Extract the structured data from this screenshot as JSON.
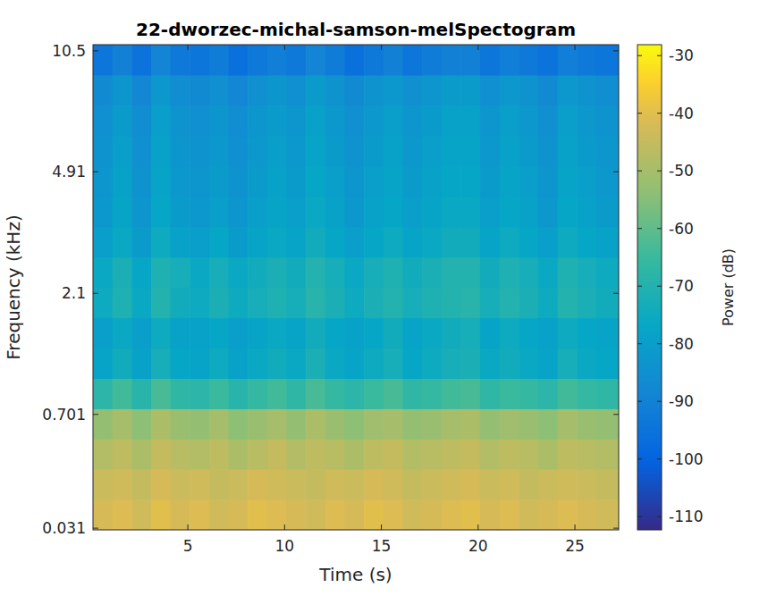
{
  "chart_data": {
    "type": "heatmap",
    "title": "22-dworzec-michal-samson-melSpectogram",
    "x_label": "Time (s)",
    "y_label": "Frequency (kHz)",
    "xlim": [
      0.1,
      27.26
    ],
    "xticks": [
      5,
      10,
      15,
      20,
      25
    ],
    "ylim": [
      0.024,
      10.9
    ],
    "yticks": [
      0.031,
      0.701,
      2.1,
      4.91,
      10.5
    ],
    "clim": [
      -112.3,
      -28.1
    ],
    "cticks": [
      -110,
      -100,
      -90,
      -80,
      -70,
      -60,
      -50,
      -40,
      -30
    ],
    "clabel": "Power (dB)",
    "x": [
      0.6,
      1.6,
      2.6,
      3.6,
      4.6,
      5.6,
      6.6,
      7.6,
      8.6,
      9.6,
      10.6,
      11.6,
      12.6,
      13.6,
      14.6,
      15.6,
      16.6,
      17.6,
      18.6,
      19.6,
      20.6,
      21.6,
      22.6,
      23.6,
      24.6,
      25.6,
      26.6
    ],
    "y": [
      0.089,
      0.238,
      0.416,
      0.627,
      0.879,
      1.178,
      1.532,
      1.957,
      2.458,
      3.059,
      3.768,
      4.613,
      5.622,
      6.815,
      8.232,
      9.933
    ],
    "cells": [
      [
        -42,
        -41,
        -43,
        -40,
        -42,
        -41,
        -43,
        -42,
        -40,
        -41,
        -42,
        -43,
        -41,
        -42,
        -40,
        -41,
        -43,
        -42,
        -41,
        -40,
        -42,
        -41,
        -43,
        -42,
        -41,
        -42,
        -43
      ],
      [
        -44,
        -43,
        -45,
        -42,
        -44,
        -43,
        -45,
        -44,
        -42,
        -43,
        -44,
        -45,
        -43,
        -44,
        -42,
        -43,
        -45,
        -44,
        -43,
        -42,
        -44,
        -43,
        -45,
        -44,
        -43,
        -44,
        -45
      ],
      [
        -48,
        -46,
        -49,
        -45,
        -47,
        -48,
        -46,
        -49,
        -47,
        -45,
        -48,
        -46,
        -47,
        -49,
        -46,
        -45,
        -48,
        -47,
        -46,
        -45,
        -48,
        -46,
        -47,
        -49,
        -46,
        -47,
        -48
      ],
      [
        -53,
        -50,
        -54,
        -49,
        -52,
        -53,
        -50,
        -54,
        -52,
        -50,
        -53,
        -49,
        -52,
        -54,
        -51,
        -50,
        -53,
        -52,
        -50,
        -49,
        -53,
        -51,
        -52,
        -54,
        -50,
        -52,
        -53
      ],
      [
        -68,
        -64,
        -69,
        -63,
        -67,
        -68,
        -65,
        -69,
        -66,
        -64,
        -67,
        -63,
        -66,
        -68,
        -65,
        -63,
        -67,
        -66,
        -64,
        -63,
        -67,
        -65,
        -66,
        -68,
        -64,
        -66,
        -67
      ],
      [
        -78,
        -74,
        -79,
        -73,
        -77,
        -78,
        -75,
        -79,
        -76,
        -74,
        -76,
        -72,
        -76,
        -78,
        -75,
        -73,
        -77,
        -75,
        -73,
        -72,
        -76,
        -74,
        -76,
        -78,
        -73,
        -76,
        -77
      ],
      [
        -80,
        -76,
        -80,
        -75,
        -79,
        -79,
        -77,
        -80,
        -78,
        -76,
        -78,
        -74,
        -77,
        -79,
        -77,
        -74,
        -78,
        -76,
        -74,
        -73,
        -78,
        -75,
        -77,
        -79,
        -75,
        -77,
        -78
      ],
      [
        -75,
        -71,
        -76,
        -70,
        -74,
        -75,
        -72,
        -75,
        -73,
        -71,
        -73,
        -69,
        -72,
        -75,
        -72,
        -70,
        -73,
        -71,
        -70,
        -69,
        -73,
        -70,
        -72,
        -75,
        -70,
        -72,
        -74
      ],
      [
        -76,
        -72,
        -77,
        -71,
        -73,
        -76,
        -73,
        -76,
        -74,
        -72,
        -74,
        -70,
        -73,
        -76,
        -73,
        -71,
        -74,
        -72,
        -70,
        -70,
        -74,
        -71,
        -73,
        -76,
        -71,
        -73,
        -75
      ],
      [
        -80,
        -76,
        -81,
        -75,
        -79,
        -80,
        -77,
        -81,
        -78,
        -76,
        -78,
        -74,
        -77,
        -80,
        -77,
        -75,
        -78,
        -76,
        -74,
        -74,
        -78,
        -75,
        -77,
        -80,
        -75,
        -77,
        -79
      ],
      [
        -82,
        -78,
        -83,
        -77,
        -81,
        -82,
        -80,
        -83,
        -80,
        -78,
        -80,
        -76,
        -79,
        -82,
        -79,
        -77,
        -80,
        -78,
        -76,
        -76,
        -80,
        -77,
        -79,
        -82,
        -77,
        -79,
        -81
      ],
      [
        -83,
        -79,
        -84,
        -78,
        -82,
        -83,
        -81,
        -84,
        -81,
        -79,
        -81,
        -77,
        -80,
        -83,
        -80,
        -78,
        -81,
        -79,
        -77,
        -77,
        -81,
        -78,
        -80,
        -83,
        -78,
        -80,
        -82
      ],
      [
        -84,
        -80,
        -85,
        -79,
        -83,
        -84,
        -82,
        -85,
        -82,
        -80,
        -82,
        -78,
        -81,
        -84,
        -81,
        -79,
        -82,
        -80,
        -78,
        -78,
        -82,
        -79,
        -81,
        -84,
        -79,
        -81,
        -83
      ],
      [
        -85,
        -81,
        -86,
        -80,
        -84,
        -85,
        -83,
        -86,
        -83,
        -81,
        -83,
        -79,
        -82,
        -85,
        -82,
        -80,
        -83,
        -81,
        -79,
        -79,
        -83,
        -80,
        -82,
        -85,
        -80,
        -82,
        -84
      ],
      [
        -87,
        -83,
        -88,
        -82,
        -86,
        -87,
        -85,
        -88,
        -85,
        -83,
        -85,
        -81,
        -84,
        -87,
        -84,
        -82,
        -85,
        -83,
        -81,
        -81,
        -85,
        -82,
        -84,
        -87,
        -82,
        -84,
        -86
      ],
      [
        -94,
        -90,
        -95,
        -89,
        -93,
        -94,
        -92,
        -96,
        -93,
        -91,
        -93,
        -89,
        -92,
        -96,
        -93,
        -90,
        -94,
        -92,
        -90,
        -90,
        -94,
        -91,
        -93,
        -95,
        -91,
        -93,
        -94
      ]
    ]
  }
}
